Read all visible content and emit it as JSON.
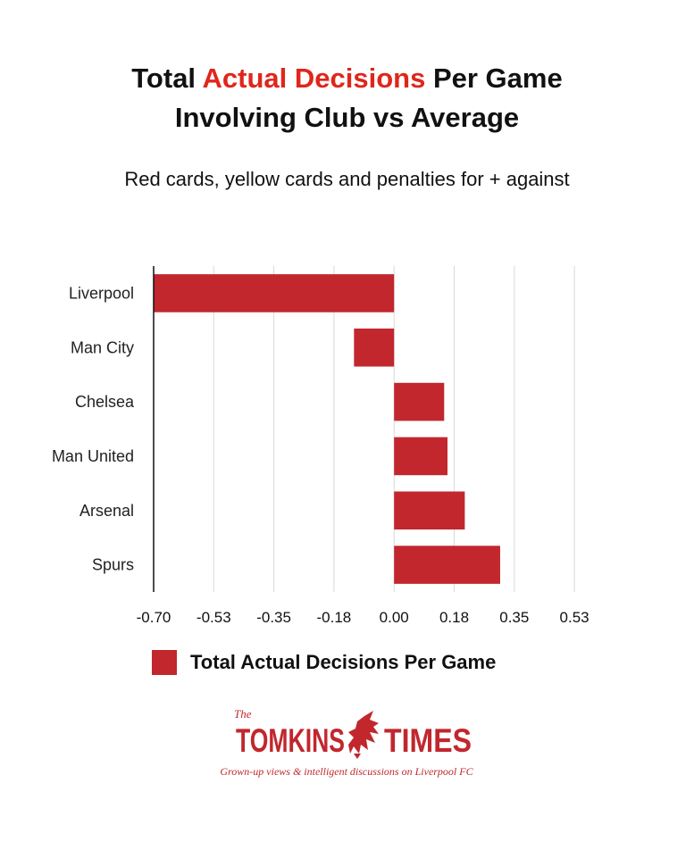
{
  "title": {
    "line1_pre": "Total ",
    "line1_highlight": "Actual Decisions",
    "line1_post": " Per Game",
    "line2": "Involving Club vs Average"
  },
  "subtitle": "Red cards, yellow cards and penalties for + against",
  "colors": {
    "bar": "#c1272d",
    "highlight": "#e0261b",
    "grid": "#d9d9d9",
    "axis": "#111111"
  },
  "chart_data": {
    "type": "bar",
    "orientation": "horizontal",
    "title": "Total Actual Decisions Per Game Involving Club vs Average",
    "subtitle": "Red cards, yellow cards and penalties for + against",
    "categories": [
      "Liverpool",
      "Man City",
      "Chelsea",
      "Man United",
      "Arsenal",
      "Spurs"
    ],
    "series": [
      {
        "name": "Total Actual Decisions Per Game",
        "values": [
          -0.7,
          -0.12,
          0.15,
          0.16,
          0.21,
          0.31
        ]
      }
    ],
    "xlim": [
      -0.7,
      0.53
    ],
    "ticks": [
      -0.7,
      -0.53,
      -0.35,
      -0.18,
      0.0,
      0.18,
      0.35,
      0.53
    ],
    "tick_labels": [
      "-0.70",
      "-0.53",
      "-0.35",
      "-0.18",
      "0.00",
      "0.18",
      "0.35",
      "0.53"
    ],
    "grid": true,
    "legend": "bottom"
  },
  "legend": {
    "label": "Total Actual Decisions Per Game"
  },
  "logo": {
    "the": "The",
    "name_left": "TOMKINS",
    "name_right": "TIMES",
    "tagline": "Grown-up views & intelligent discussions on Liverpool FC"
  }
}
